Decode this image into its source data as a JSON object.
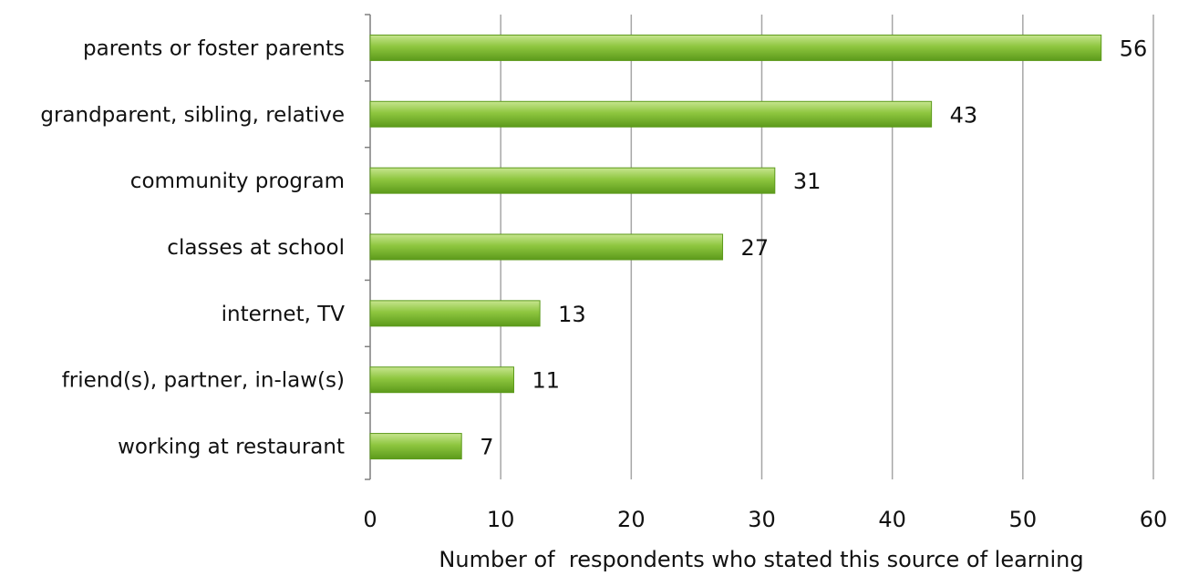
{
  "chart_data": {
    "type": "bar",
    "orientation": "horizontal",
    "categories": [
      "parents or foster parents",
      "grandparent, sibling, relative",
      "community program",
      "classes at school",
      "internet, TV",
      "friend(s), partner, in-law(s)",
      "working at restaurant"
    ],
    "values": [
      56,
      43,
      31,
      27,
      13,
      11,
      7
    ],
    "xlabel": "Number of  respondents who stated this source of learning",
    "ylabel": "",
    "xlim": [
      0,
      60
    ],
    "xticks": [
      0,
      10,
      20,
      30,
      40,
      50,
      60
    ],
    "grid": "vertical",
    "legend": "none",
    "colors": {
      "bar_fill": "#8ec63f",
      "bar_dark": "#5c9a1b",
      "bar_light": "#c7e58f",
      "gridline": "#a6a6a6",
      "axis": "#7f7f7f"
    }
  }
}
